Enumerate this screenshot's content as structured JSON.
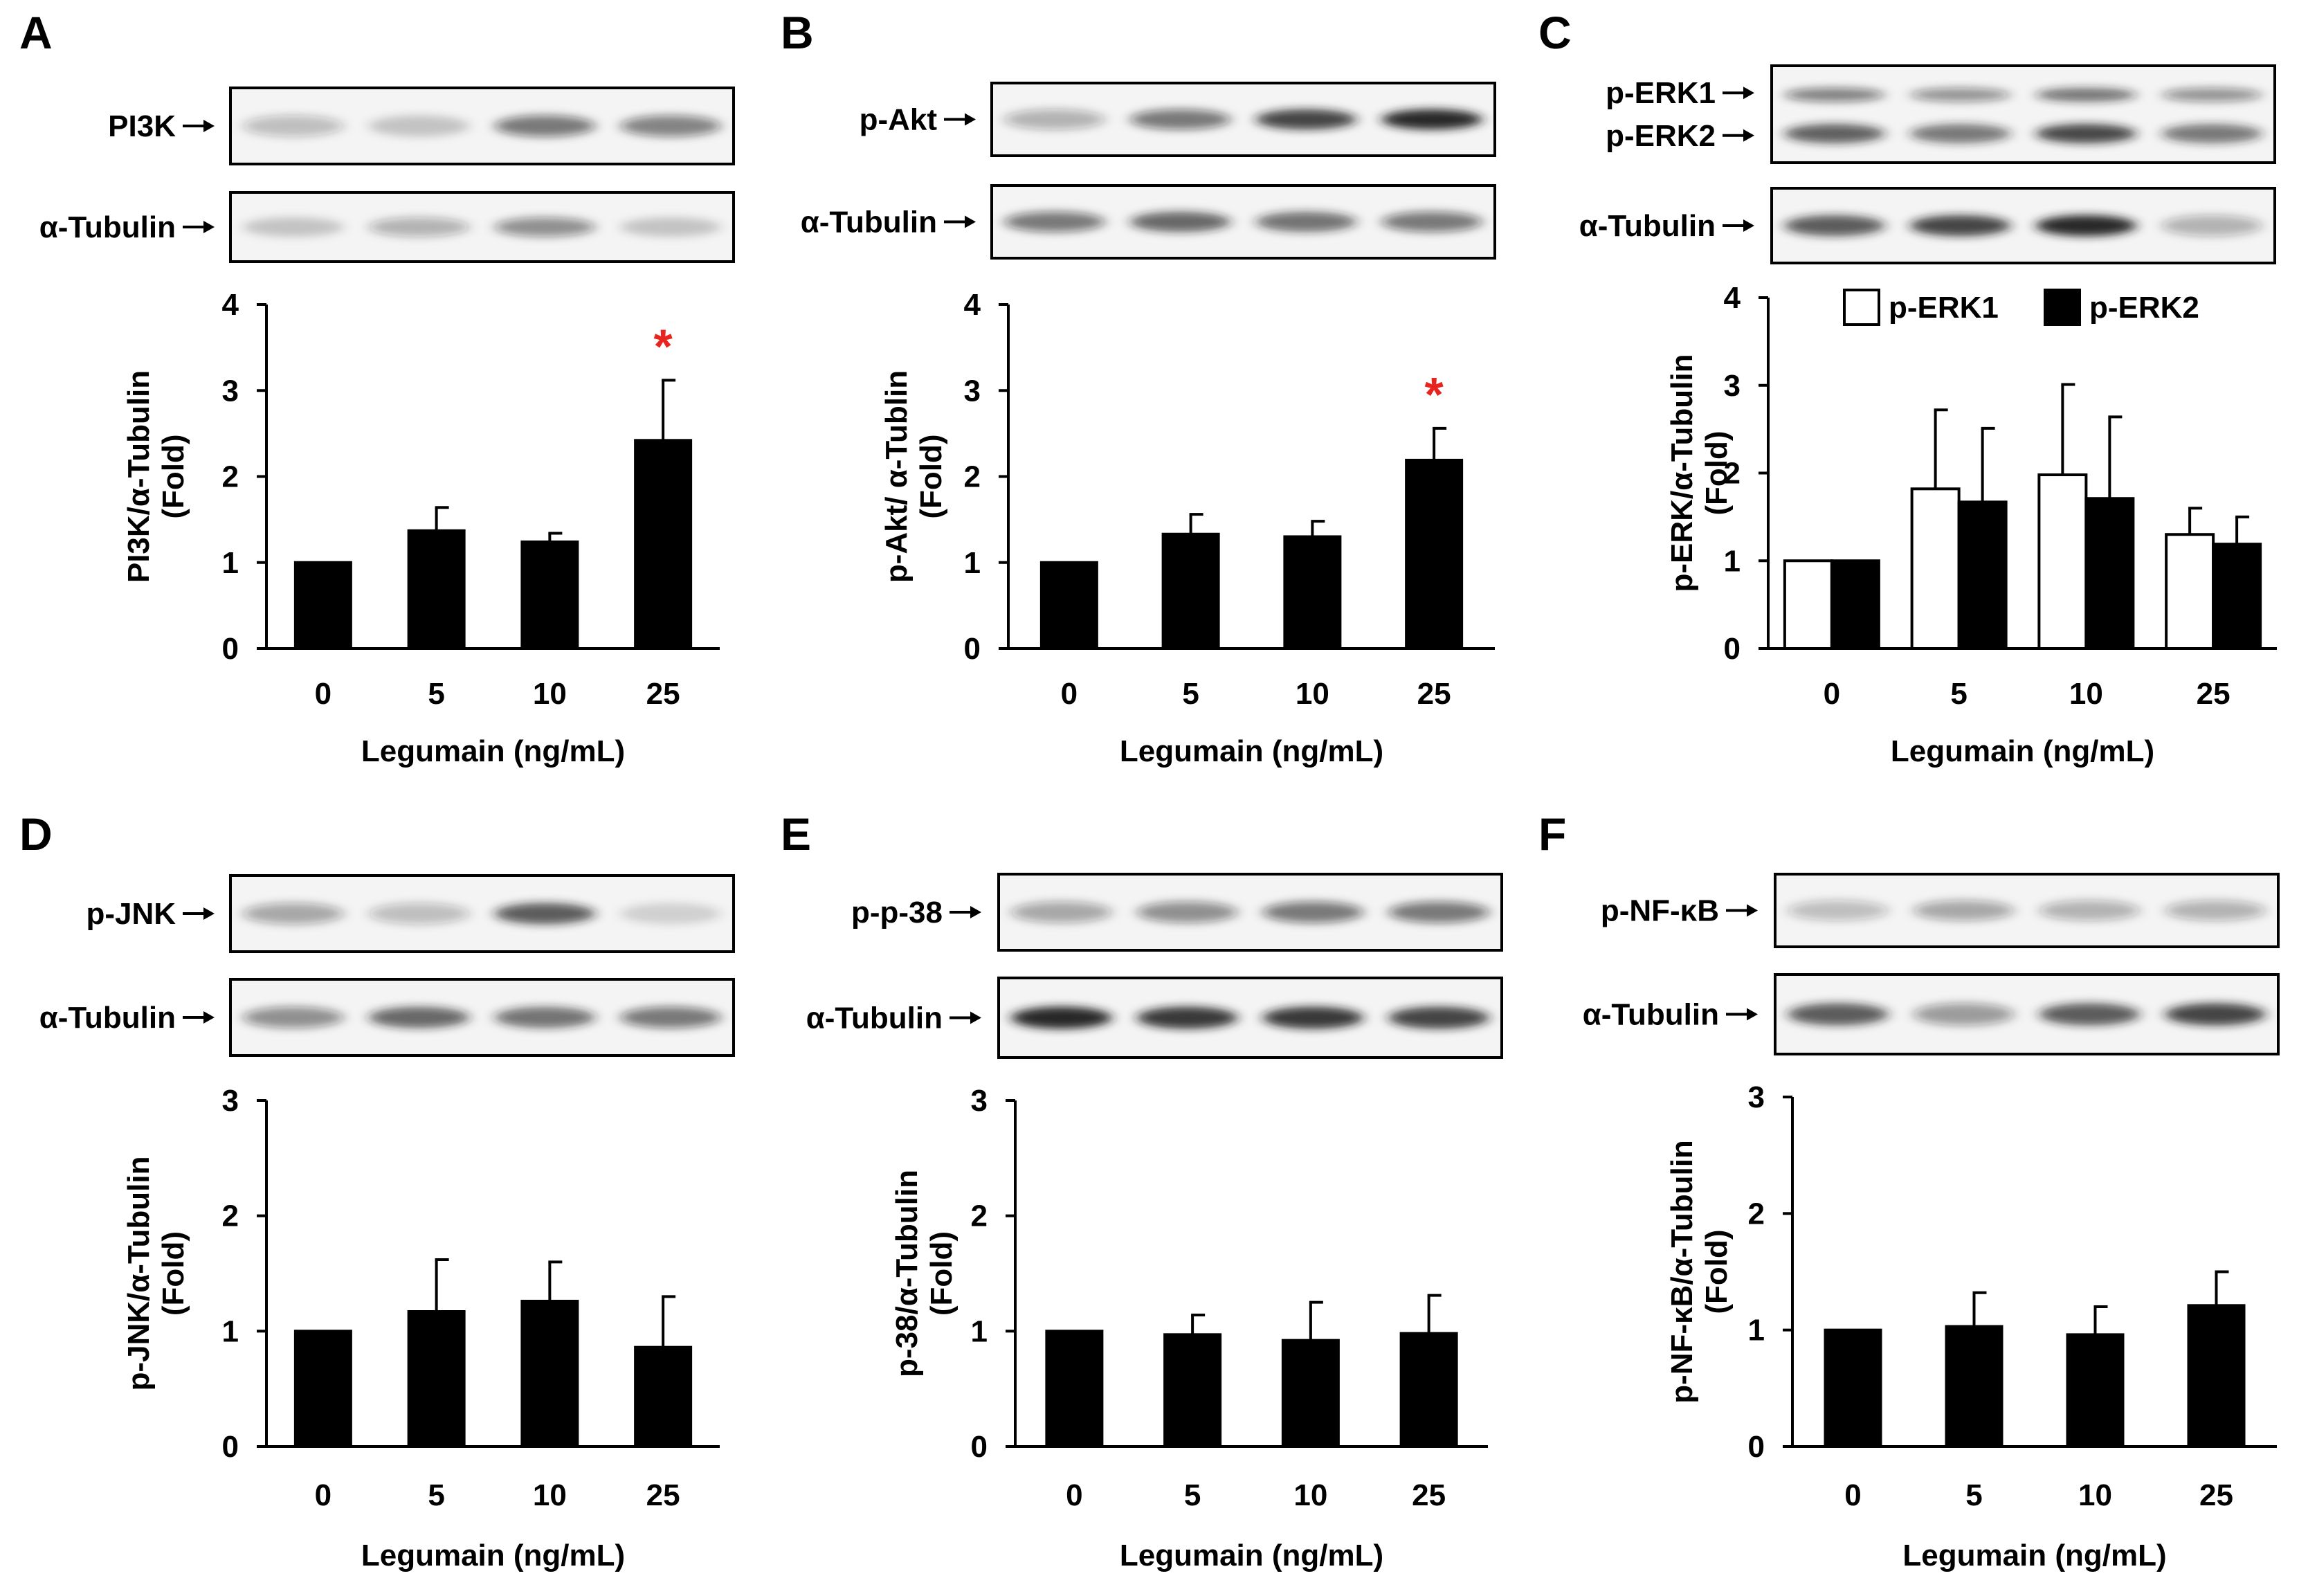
{
  "colors": {
    "bar_fill": "#000000",
    "bar_fill_alt": "#ffffff",
    "significance": "#e8241f",
    "blot_background": "#f4f4f4",
    "blot_band": "#1a1a1a"
  },
  "significance_symbol": "*",
  "chart_data": [
    {
      "panel": "A",
      "type": "bar",
      "blots": [
        {
          "label": "PI3K",
          "band_intensity": [
            0.25,
            0.2,
            0.55,
            0.5
          ]
        },
        {
          "label": "α-Tubulin",
          "band_intensity": [
            0.2,
            0.3,
            0.45,
            0.2
          ]
        }
      ],
      "categories": [
        "0",
        "5",
        "10",
        "25"
      ],
      "xlabel": "Legumain (ng/mL)",
      "ylabel": [
        "PI3K/α-Tubulin",
        "(Fold)"
      ],
      "ylim": [
        0,
        4
      ],
      "yticks": [
        "0",
        "1",
        "2",
        "3",
        "4"
      ],
      "series": [
        {
          "values": [
            1.0,
            1.37,
            1.24,
            2.42
          ],
          "errors": [
            0,
            0.27,
            0.1,
            0.7
          ],
          "fill": "#000000"
        }
      ],
      "significant": [
        false,
        false,
        false,
        true
      ],
      "legend": null
    },
    {
      "panel": "B",
      "type": "bar",
      "blots": [
        {
          "label": "p-Akt",
          "band_intensity": [
            0.3,
            0.55,
            0.8,
            0.95
          ]
        },
        {
          "label": "α-Tubulin",
          "band_intensity": [
            0.55,
            0.65,
            0.6,
            0.55
          ]
        }
      ],
      "categories": [
        "0",
        "5",
        "10",
        "25"
      ],
      "xlabel": "Legumain (ng/mL)",
      "ylabel": [
        "p-Akt/ α-Tublin",
        "(Fold)"
      ],
      "ylim": [
        0,
        4
      ],
      "yticks": [
        "0",
        "1",
        "2",
        "3",
        "4"
      ],
      "series": [
        {
          "values": [
            1.0,
            1.33,
            1.3,
            2.19
          ],
          "errors": [
            0,
            0.23,
            0.18,
            0.37
          ],
          "fill": "#000000"
        }
      ],
      "significant": [
        false,
        false,
        false,
        true
      ],
      "legend": null
    },
    {
      "panel": "C",
      "type": "bar",
      "blots": [
        {
          "label": "p-ERK1",
          "label2": "p-ERK2",
          "band_intensity": [
            0.65,
            0.55,
            0.75,
            0.55
          ],
          "double": true
        },
        {
          "label": "α-Tubulin",
          "band_intensity": [
            0.7,
            0.8,
            0.95,
            0.3
          ]
        }
      ],
      "categories": [
        "0",
        "5",
        "10",
        "25"
      ],
      "xlabel": "Legumain (ng/mL)",
      "ylabel": [
        "p-ERK/α-Tubulin",
        "(Fold)"
      ],
      "ylim": [
        0,
        4
      ],
      "yticks": [
        "0",
        "1",
        "2",
        "3",
        "4"
      ],
      "series": [
        {
          "name": "p-ERK1",
          "values": [
            1.0,
            1.82,
            1.98,
            1.3
          ],
          "errors": [
            0,
            0.9,
            1.03,
            0.3
          ],
          "fill": "#ffffff"
        },
        {
          "name": "p-ERK2",
          "values": [
            1.0,
            1.67,
            1.71,
            1.19
          ],
          "errors": [
            0,
            0.84,
            0.93,
            0.31
          ],
          "fill": "#000000"
        }
      ],
      "significant": [
        false,
        false,
        false,
        false
      ],
      "legend": [
        "p-ERK1",
        "p-ERK2"
      ]
    },
    {
      "panel": "D",
      "type": "bar",
      "blots": [
        {
          "label": "p-JNK",
          "band_intensity": [
            0.35,
            0.25,
            0.7,
            0.15
          ]
        },
        {
          "label": "α-Tubulin",
          "band_intensity": [
            0.45,
            0.65,
            0.6,
            0.55
          ]
        }
      ],
      "categories": [
        "0",
        "5",
        "10",
        "25"
      ],
      "xlabel": "Legumain (ng/mL)",
      "ylabel": [
        "p-JNK/α-Tubulin",
        "(Fold)"
      ],
      "ylim": [
        0,
        3
      ],
      "yticks": [
        "0",
        "1",
        "2",
        "3"
      ],
      "series": [
        {
          "values": [
            1.0,
            1.17,
            1.26,
            0.86
          ],
          "errors": [
            0,
            0.45,
            0.34,
            0.44
          ],
          "fill": "#000000"
        }
      ],
      "significant": [
        false,
        false,
        false,
        false
      ],
      "legend": null
    },
    {
      "panel": "E",
      "type": "bar",
      "blots": [
        {
          "label": "p-p-38",
          "band_intensity": [
            0.35,
            0.45,
            0.55,
            0.55
          ]
        },
        {
          "label": "α-Tubulin",
          "band_intensity": [
            0.95,
            0.85,
            0.85,
            0.8
          ]
        }
      ],
      "categories": [
        "0",
        "5",
        "10",
        "25"
      ],
      "xlabel": "Legumain (ng/mL)",
      "ylabel": [
        "p-38/α-Tubulin",
        "(Fold)"
      ],
      "ylim": [
        0,
        3
      ],
      "yticks": [
        "0",
        "1",
        "2",
        "3"
      ],
      "series": [
        {
          "values": [
            1.0,
            0.97,
            0.92,
            0.98
          ],
          "errors": [
            0,
            0.17,
            0.33,
            0.33
          ],
          "fill": "#000000"
        }
      ],
      "significant": [
        false,
        false,
        false,
        false
      ],
      "legend": null
    },
    {
      "panel": "F",
      "type": "bar",
      "blots": [
        {
          "label": "p-NF-κB",
          "band_intensity": [
            0.25,
            0.35,
            0.3,
            0.3
          ]
        },
        {
          "label": "α-Tubulin",
          "band_intensity": [
            0.7,
            0.4,
            0.7,
            0.8
          ]
        }
      ],
      "categories": [
        "0",
        "5",
        "10",
        "25"
      ],
      "xlabel": "Legumain (ng/mL)",
      "ylabel": [
        "p-NF-κB/α-Tubulin",
        "(Fold)"
      ],
      "ylim": [
        0,
        3
      ],
      "yticks": [
        "0",
        "1",
        "2",
        "3"
      ],
      "series": [
        {
          "values": [
            1.0,
            1.03,
            0.96,
            1.21
          ],
          "errors": [
            0,
            0.29,
            0.24,
            0.29
          ],
          "fill": "#000000"
        }
      ],
      "significant": [
        false,
        false,
        false,
        false
      ],
      "legend": null
    }
  ]
}
